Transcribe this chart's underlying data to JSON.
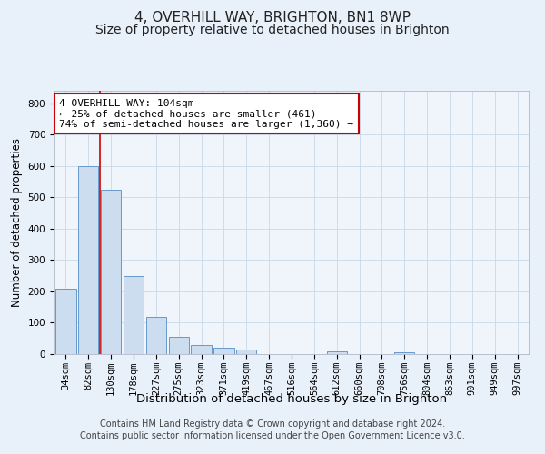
{
  "title1": "4, OVERHILL WAY, BRIGHTON, BN1 8WP",
  "title2": "Size of property relative to detached houses in Brighton",
  "xlabel": "Distribution of detached houses by size in Brighton",
  "ylabel": "Number of detached properties",
  "bar_labels": [
    "34sqm",
    "82sqm",
    "130sqm",
    "178sqm",
    "227sqm",
    "275sqm",
    "323sqm",
    "371sqm",
    "419sqm",
    "467sqm",
    "516sqm",
    "564sqm",
    "612sqm",
    "660sqm",
    "708sqm",
    "756sqm",
    "804sqm",
    "853sqm",
    "901sqm",
    "949sqm",
    "997sqm"
  ],
  "bar_heights": [
    210,
    600,
    525,
    250,
    118,
    55,
    30,
    20,
    14,
    0,
    0,
    0,
    8,
    0,
    0,
    7,
    0,
    0,
    0,
    0,
    0
  ],
  "bar_color": "#ccddf0",
  "bar_edge_color": "#6699cc",
  "vline_x": 1.5,
  "vline_color": "#cc0000",
  "annotation_text": "4 OVERHILL WAY: 104sqm\n← 25% of detached houses are smaller (461)\n74% of semi-detached houses are larger (1,360) →",
  "annotation_box_color": "#ffffff",
  "annotation_box_edge": "#cc0000",
  "ylim": [
    0,
    840
  ],
  "yticks": [
    0,
    100,
    200,
    300,
    400,
    500,
    600,
    700,
    800
  ],
  "bg_color": "#e8f0fa",
  "plot_bg": "#f0f5fc",
  "grid_color": "#c8d8e8",
  "footer1": "Contains HM Land Registry data © Crown copyright and database right 2024.",
  "footer2": "Contains public sector information licensed under the Open Government Licence v3.0.",
  "title1_fontsize": 11,
  "title2_fontsize": 10,
  "xlabel_fontsize": 9.5,
  "ylabel_fontsize": 8.5,
  "tick_fontsize": 7.5,
  "footer_fontsize": 7,
  "ann_fontsize": 8
}
